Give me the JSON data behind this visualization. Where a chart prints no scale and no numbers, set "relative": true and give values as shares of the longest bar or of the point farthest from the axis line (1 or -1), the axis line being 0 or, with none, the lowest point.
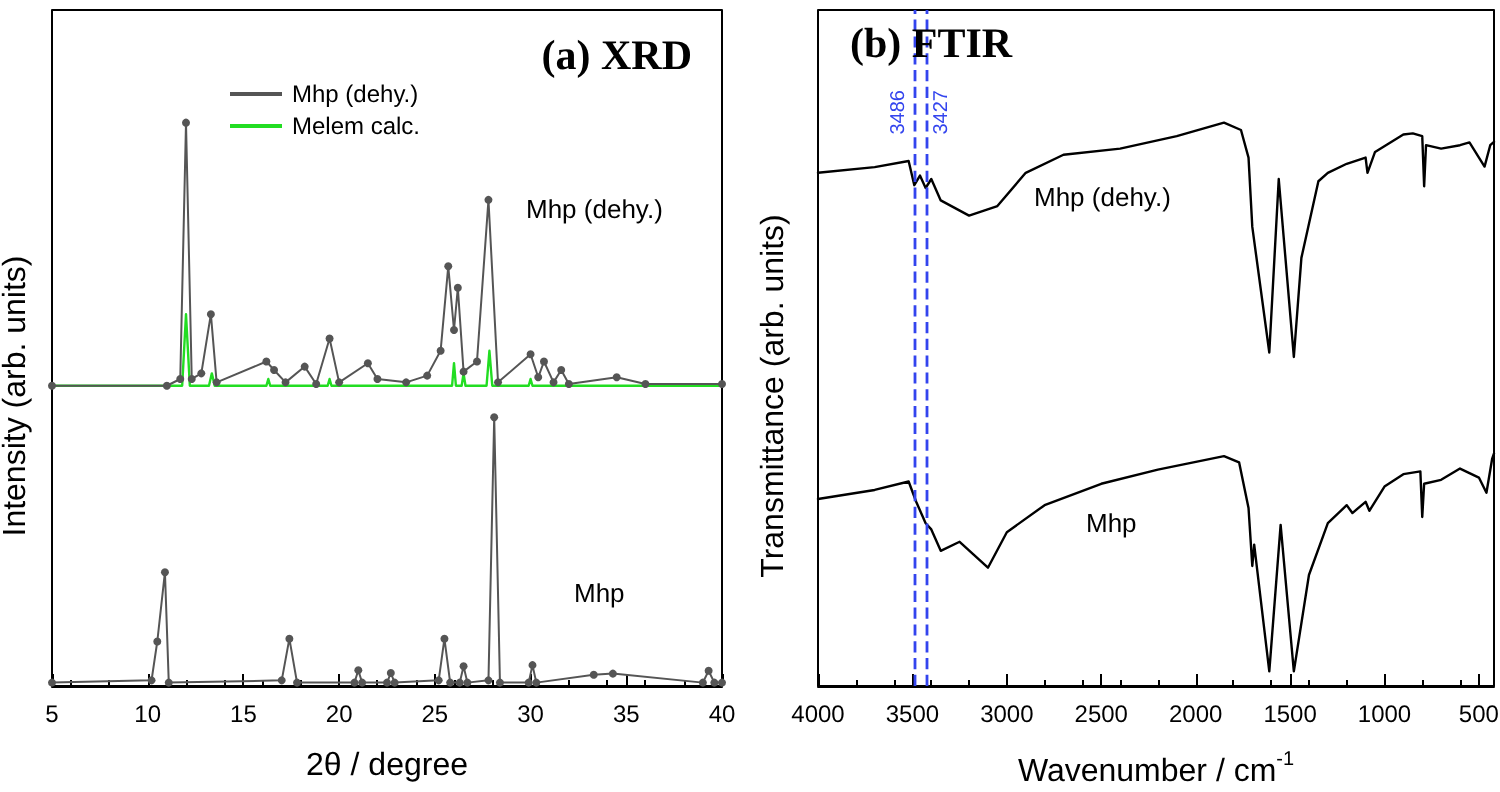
{
  "chart_data": [
    {
      "type": "line",
      "title": "(a) XRD",
      "xlabel": "2θ / degree",
      "ylabel": "Intensity (arb. units)",
      "relative": true,
      "xlim": [
        5,
        40
      ],
      "xticks": [
        5,
        10,
        15,
        20,
        25,
        30,
        35,
        40
      ],
      "legend": "top",
      "tick_labels": "x",
      "series": [
        {
          "name": "Mhp (dehy.)",
          "color": "#555555",
          "marker": "circle",
          "x": [
            5,
            11,
            11.7,
            12.0,
            12.3,
            12.8,
            13.3,
            13.6,
            16.2,
            16.6,
            17.2,
            18.2,
            18.8,
            19.5,
            20.0,
            21.5,
            22.0,
            23.5,
            24.6,
            25.3,
            25.7,
            26.0,
            26.2,
            26.5,
            27.2,
            27.8,
            28.3,
            30.0,
            30.4,
            30.7,
            31.2,
            31.6,
            32.0,
            34.5,
            36,
            40
          ],
          "values": [
            0.533,
            0.533,
            0.545,
            1.0,
            0.545,
            0.555,
            0.66,
            0.539,
            0.576,
            0.561,
            0.539,
            0.567,
            0.536,
            0.617,
            0.539,
            0.573,
            0.545,
            0.539,
            0.551,
            0.595,
            0.745,
            0.632,
            0.707,
            0.558,
            0.576,
            0.863,
            0.539,
            0.589,
            0.548,
            0.576,
            0.539,
            0.561,
            0.536,
            0.548,
            0.536,
            0.536
          ]
        },
        {
          "name": "Melem calc.",
          "color": "#22dd22",
          "marker": "none",
          "x": [
            5,
            11.8,
            12.0,
            12.2,
            13.2,
            13.35,
            13.5,
            16.2,
            16.3,
            16.4,
            19.4,
            19.5,
            19.6,
            25.9,
            26.0,
            26.1,
            26.4,
            26.5,
            26.6,
            27.7,
            27.85,
            28.0,
            29.9,
            30.0,
            30.1,
            40
          ],
          "values": [
            0.533,
            0.533,
            0.66,
            0.533,
            0.533,
            0.555,
            0.533,
            0.533,
            0.545,
            0.533,
            0.533,
            0.545,
            0.533,
            0.533,
            0.573,
            0.533,
            0.533,
            0.555,
            0.533,
            0.533,
            0.595,
            0.533,
            0.533,
            0.545,
            0.533,
            0.533
          ]
        },
        {
          "color": "#555555",
          "marker": "circle",
          "x": [
            5,
            10.2,
            10.5,
            10.9,
            11.1,
            17.0,
            17.4,
            17.8,
            20.8,
            21.0,
            21.2,
            22.5,
            22.7,
            22.9,
            25.2,
            25.5,
            25.8,
            26.3,
            26.5,
            26.7,
            27.8,
            28.1,
            28.4,
            29.9,
            30.1,
            30.3,
            33.3,
            34.3,
            39.0,
            39.3,
            39.6,
            40
          ],
          "values": [
            0.006,
            0.01,
            0.079,
            0.202,
            0.006,
            0.01,
            0.084,
            0.006,
            0.006,
            0.028,
            0.006,
            0.006,
            0.023,
            0.006,
            0.01,
            0.084,
            0.006,
            0.006,
            0.035,
            0.006,
            0.01,
            0.477,
            0.006,
            0.006,
            0.037,
            0.006,
            0.02,
            0.022,
            0.006,
            0.027,
            0.006,
            0.006
          ]
        }
      ],
      "annotations": [
        "Mhp (dehy.)",
        "Mhp"
      ]
    },
    {
      "type": "line",
      "title": "(b) FTIR",
      "xlabel": "Wavenumber / cm$^{-1}$",
      "ylabel": "Transmittance (arb. units)",
      "relative": true,
      "xlim": [
        4000,
        420
      ],
      "xticks": [
        4000,
        3500,
        3000,
        2500,
        2000,
        1500,
        1000,
        500
      ],
      "tick_labels": "x",
      "series": [
        {
          "color": "#000000",
          "x": [
            4000,
            3700,
            3520,
            3490,
            3460,
            3430,
            3400,
            3350,
            3200,
            3050,
            2900,
            2700,
            2400,
            2100,
            1850,
            1760,
            1720,
            1700,
            1610,
            1560,
            1480,
            1440,
            1350,
            1300,
            1200,
            1100,
            1090,
            1050,
            900,
            850,
            800,
            790,
            780,
            700,
            600,
            550,
            470,
            440,
            420
          ],
          "values": [
            0.911,
            0.921,
            0.932,
            0.889,
            0.906,
            0.884,
            0.9,
            0.862,
            0.835,
            0.852,
            0.911,
            0.943,
            0.954,
            0.976,
            1.0,
            0.987,
            0.938,
            0.815,
            0.592,
            0.9,
            0.584,
            0.76,
            0.896,
            0.911,
            0.927,
            0.938,
            0.911,
            0.948,
            0.979,
            0.981,
            0.976,
            0.887,
            0.96,
            0.954,
            0.96,
            0.965,
            0.922,
            0.96,
            0.966
          ]
        },
        {
          "color": "#000000",
          "x": [
            4000,
            3700,
            3520,
            3480,
            3430,
            3400,
            3350,
            3250,
            3100,
            3000,
            2800,
            2500,
            2200,
            1850,
            1770,
            1720,
            1700,
            1690,
            1610,
            1550,
            1480,
            1400,
            1300,
            1200,
            1170,
            1100,
            1080,
            1000,
            900,
            810,
            800,
            790,
            700,
            600,
            500,
            460,
            430,
            420
          ],
          "values": [
            0.332,
            0.348,
            0.363,
            0.327,
            0.289,
            0.278,
            0.24,
            0.256,
            0.21,
            0.273,
            0.321,
            0.359,
            0.384,
            0.408,
            0.397,
            0.316,
            0.213,
            0.251,
            0.026,
            0.286,
            0.026,
            0.197,
            0.289,
            0.321,
            0.307,
            0.327,
            0.311,
            0.354,
            0.376,
            0.381,
            0.3,
            0.359,
            0.366,
            0.386,
            0.37,
            0.343,
            0.403,
            0.413
          ]
        }
      ],
      "ref_lines": [
        {
          "axis": "x",
          "value": 3486,
          "label": "3486",
          "color": "#3344ee",
          "line_style": "dashed"
        },
        {
          "axis": "x",
          "value": 3427,
          "label": "3427",
          "color": "#3344ee",
          "line_style": "dashed"
        }
      ],
      "annotations": [
        "Mhp (dehy.)",
        "Mhp"
      ]
    }
  ]
}
